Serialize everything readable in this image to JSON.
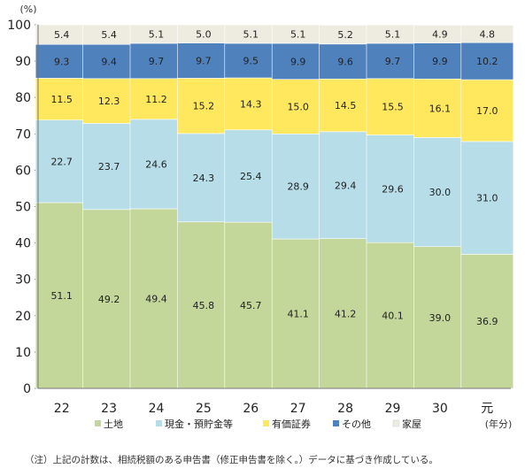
{
  "chart_data": {
    "type": "bar",
    "stacked": true,
    "y_unit": "(%)",
    "x_unit": "(年分)",
    "categories": [
      "22",
      "23",
      "24",
      "25",
      "26",
      "27",
      "28",
      "29",
      "30",
      "元"
    ],
    "ylim": [
      0,
      100
    ],
    "yticks": [
      0,
      10,
      20,
      30,
      40,
      50,
      60,
      70,
      80,
      90,
      100
    ],
    "grid": false,
    "legend_position": "bottom",
    "series": [
      {
        "name": "土地",
        "color": "#c4d79b",
        "values": [
          51.1,
          49.2,
          49.4,
          45.8,
          45.7,
          41.1,
          41.2,
          40.1,
          39.0,
          36.9
        ]
      },
      {
        "name": "現金・預貯金等",
        "color": "#b7dde8",
        "values": [
          22.7,
          23.7,
          24.6,
          24.3,
          25.4,
          28.9,
          29.4,
          29.6,
          30.0,
          31.0
        ]
      },
      {
        "name": "有価証券",
        "color": "#ffe75e",
        "values": [
          11.5,
          12.3,
          11.2,
          15.2,
          14.3,
          15.0,
          14.5,
          15.5,
          16.1,
          17.0
        ]
      },
      {
        "name": "その他",
        "color": "#4f81bd",
        "values": [
          9.3,
          9.4,
          9.7,
          9.7,
          9.5,
          9.9,
          9.6,
          9.7,
          9.9,
          10.2
        ]
      },
      {
        "name": "家屋",
        "color": "#eeece1",
        "values": [
          5.4,
          5.4,
          5.1,
          5.0,
          5.1,
          5.1,
          5.2,
          5.1,
          4.9,
          4.8
        ]
      }
    ],
    "labels": [
      [
        "51.1",
        "49.2",
        "49.4",
        "45.8",
        "45.7",
        "41.1",
        "41.2",
        "40.1",
        "39.0",
        "36.9"
      ],
      [
        "22.7",
        "23.7",
        "24.6",
        "24.3",
        "25.4",
        "28.9",
        "29.4",
        "29.6",
        "30.0",
        "31.0"
      ],
      [
        "11.5",
        "12.3",
        "11.2",
        "15.2",
        "14.3",
        "15.0",
        "14.5",
        "15.5",
        "16.1",
        "17.0"
      ],
      [
        "9.3",
        "9.4",
        "9.7",
        "9.7",
        "9.5",
        "9.9",
        "9.6",
        "9.7",
        "9.9",
        "10.2"
      ],
      [
        "5.4",
        "5.4",
        "5.1",
        "5.0",
        "5.1",
        "5.1",
        "5.2",
        "5.1",
        "4.9",
        "4.8"
      ]
    ]
  },
  "note": "（注）上記の計数は、相続税額のある申告書（修正申告書を除く。）データに基づき作成している。"
}
